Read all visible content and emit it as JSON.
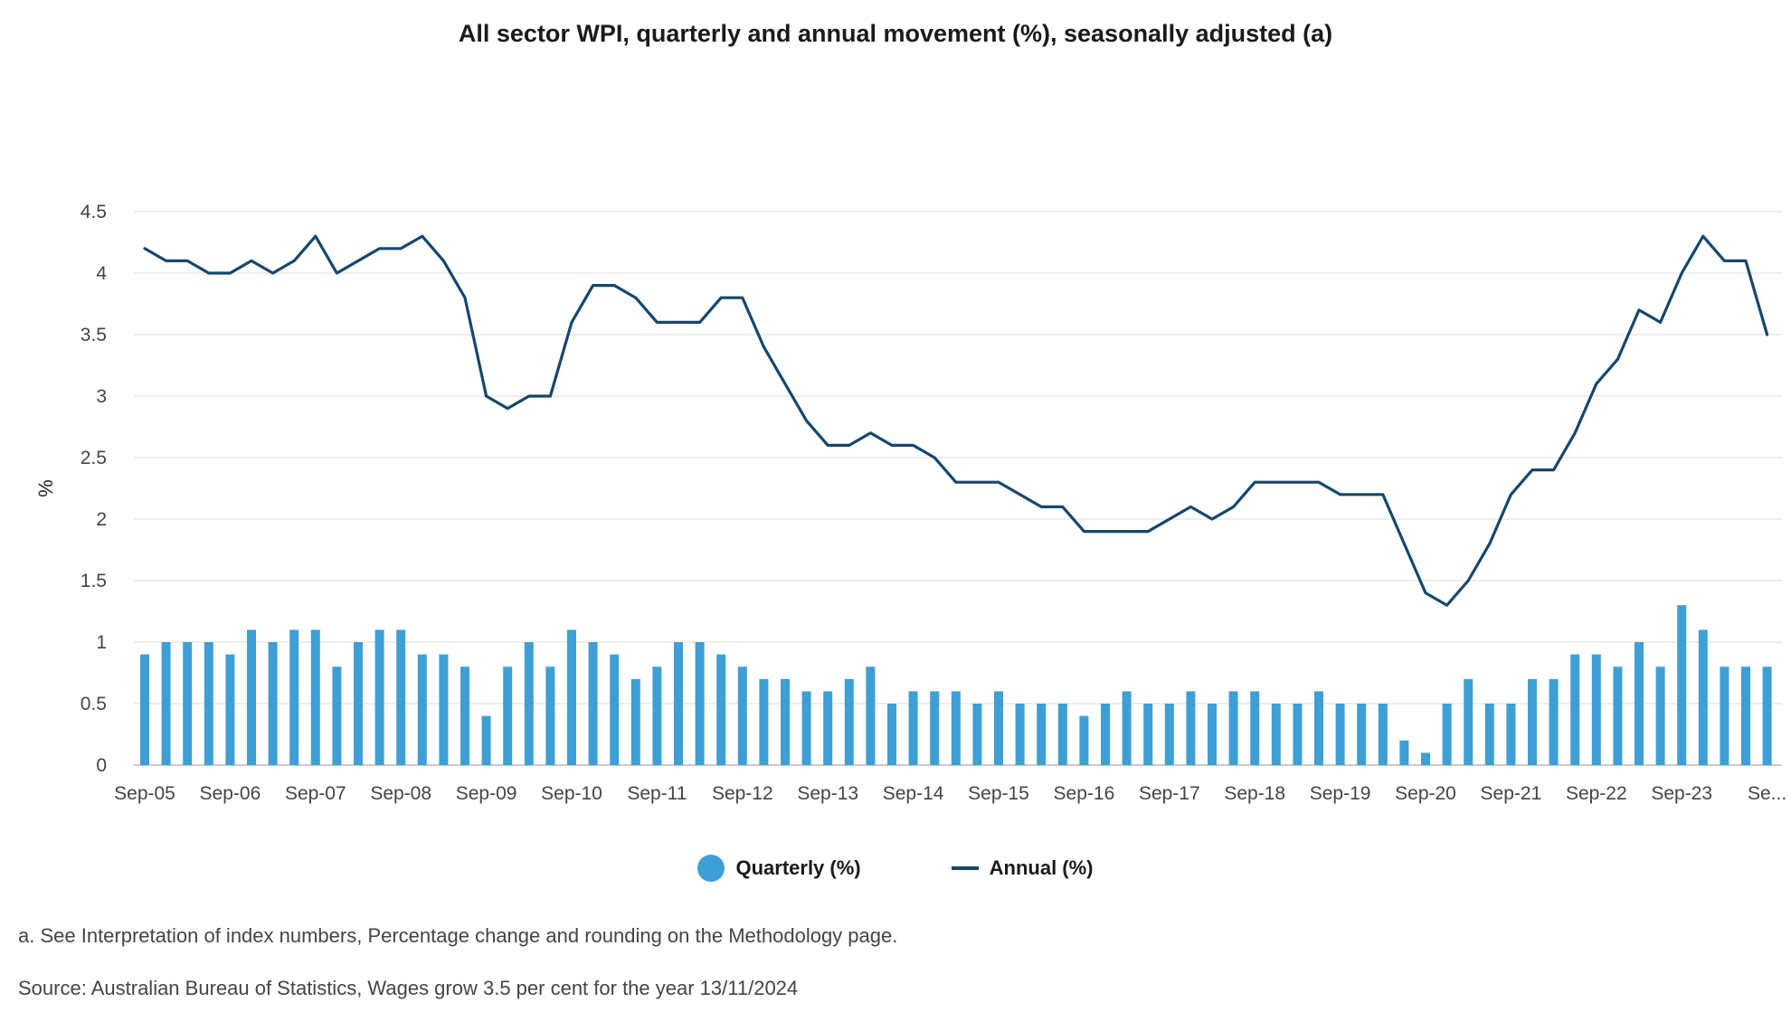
{
  "chart_data": {
    "type": "bar+line",
    "title": "All sector WPI, quarterly and annual movement (%), seasonally adjusted (a)",
    "xlabel": "",
    "ylabel": "%",
    "ylim": [
      0,
      4.5
    ],
    "yticks": [
      0,
      0.5,
      1,
      1.5,
      2,
      2.5,
      3,
      3.5,
      4,
      4.5
    ],
    "ytick_labels": [
      "0",
      "0.5",
      "1",
      "1.5",
      "2",
      "2.5",
      "3",
      "3.5",
      "4",
      "4.5"
    ],
    "grid": true,
    "legend_position": "bottom",
    "x_tick_labels": [
      "Sep-05",
      "Sep-06",
      "Sep-07",
      "Sep-08",
      "Sep-09",
      "Sep-10",
      "Sep-11",
      "Sep-12",
      "Sep-13",
      "Sep-14",
      "Sep-15",
      "Sep-16",
      "Sep-17",
      "Sep-18",
      "Sep-19",
      "Sep-20",
      "Sep-21",
      "Sep-22",
      "Sep-23",
      "Se..."
    ],
    "x_tick_every": 4,
    "series": [
      {
        "name": "Quarterly (%)",
        "type": "bar",
        "color": "#3e9fd6",
        "values": [
          0.9,
          1.0,
          1.0,
          1.0,
          0.9,
          1.1,
          1.0,
          1.1,
          1.1,
          0.8,
          1.0,
          1.1,
          1.1,
          0.9,
          0.9,
          0.8,
          0.4,
          0.8,
          1.0,
          0.8,
          1.1,
          1.0,
          0.9,
          0.7,
          0.8,
          1.0,
          1.0,
          0.9,
          0.8,
          0.7,
          0.7,
          0.6,
          0.6,
          0.7,
          0.8,
          0.5,
          0.6,
          0.6,
          0.6,
          0.5,
          0.6,
          0.5,
          0.5,
          0.5,
          0.4,
          0.5,
          0.6,
          0.5,
          0.5,
          0.6,
          0.5,
          0.6,
          0.6,
          0.5,
          0.5,
          0.6,
          0.5,
          0.5,
          0.5,
          0.2,
          0.1,
          0.5,
          0.7,
          0.5,
          0.5,
          0.7,
          0.7,
          0.9,
          0.9,
          0.8,
          1.0,
          0.8,
          1.3,
          1.1,
          0.8,
          0.8,
          0.8
        ]
      },
      {
        "name": "Annual (%)",
        "type": "line",
        "color": "#15476e",
        "values": [
          4.2,
          4.1,
          4.1,
          4.0,
          4.0,
          4.1,
          4.0,
          4.1,
          4.3,
          4.0,
          4.1,
          4.2,
          4.2,
          4.3,
          4.1,
          3.8,
          3.0,
          2.9,
          3.0,
          3.0,
          3.6,
          3.9,
          3.9,
          3.8,
          3.6,
          3.6,
          3.6,
          3.8,
          3.8,
          3.4,
          3.1,
          2.8,
          2.6,
          2.6,
          2.7,
          2.6,
          2.6,
          2.5,
          2.3,
          2.3,
          2.3,
          2.2,
          2.1,
          2.1,
          1.9,
          1.9,
          1.9,
          1.9,
          2.0,
          2.1,
          2.0,
          2.1,
          2.3,
          2.3,
          2.3,
          2.3,
          2.2,
          2.2,
          2.2,
          1.8,
          1.4,
          1.3,
          1.5,
          1.8,
          2.2,
          2.4,
          2.4,
          2.7,
          3.1,
          3.3,
          3.7,
          3.6,
          4.0,
          4.3,
          4.1,
          4.1,
          3.5
        ]
      }
    ]
  },
  "legend": {
    "quarterly_label": "Quarterly (%)",
    "annual_label": "Annual (%)"
  },
  "footnotes": {
    "note_a": "a. See Interpretation of index numbers, Percentage change and rounding on the Methodology page.",
    "source": "Source: Australian Bureau of Statistics, Wages grow 3.5 per cent for the year 13/11/2024"
  }
}
